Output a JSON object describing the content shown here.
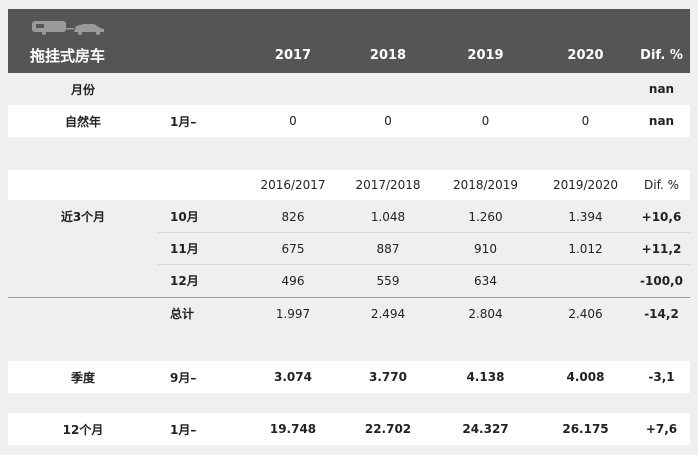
{
  "header": {
    "title": "拖挂式房车",
    "years": [
      "2017",
      "2018",
      "2019",
      "2020"
    ],
    "diff": "Dif. %",
    "icon": "caravan-car-icon"
  },
  "month_row": {
    "label": "月份",
    "diff": "nan"
  },
  "natural_year": {
    "label": "自然年",
    "period": "1月–",
    "values": [
      "0",
      "0",
      "0",
      "0"
    ],
    "diff": "nan"
  },
  "season_header": {
    "years": [
      "2016/2017",
      "2017/2018",
      "2018/2019",
      "2019/2020"
    ],
    "diff": "Dif. %"
  },
  "recent3": {
    "label": "近3个月",
    "rows": [
      {
        "month": "10月",
        "values": [
          "826",
          "1.048",
          "1.260",
          "1.394"
        ],
        "diff": "+10,6"
      },
      {
        "month": "11月",
        "values": [
          "675",
          "887",
          "910",
          "1.012"
        ],
        "diff": "+11,2"
      },
      {
        "month": "12月",
        "values": [
          "496",
          "559",
          "634",
          ""
        ],
        "diff": "-100,0"
      }
    ],
    "total": {
      "label": "总计",
      "values": [
        "1.997",
        "2.494",
        "2.804",
        "2.406"
      ],
      "diff": "-14,2"
    }
  },
  "quarter": {
    "label": "季度",
    "period": "9月–",
    "values": [
      "3.074",
      "3.770",
      "4.138",
      "4.008"
    ],
    "diff": "-3,1"
  },
  "twelve": {
    "label": "12个月",
    "period": "1月–",
    "values": [
      "19.748",
      "22.702",
      "24.327",
      "26.175"
    ],
    "diff": "+7,6"
  }
}
